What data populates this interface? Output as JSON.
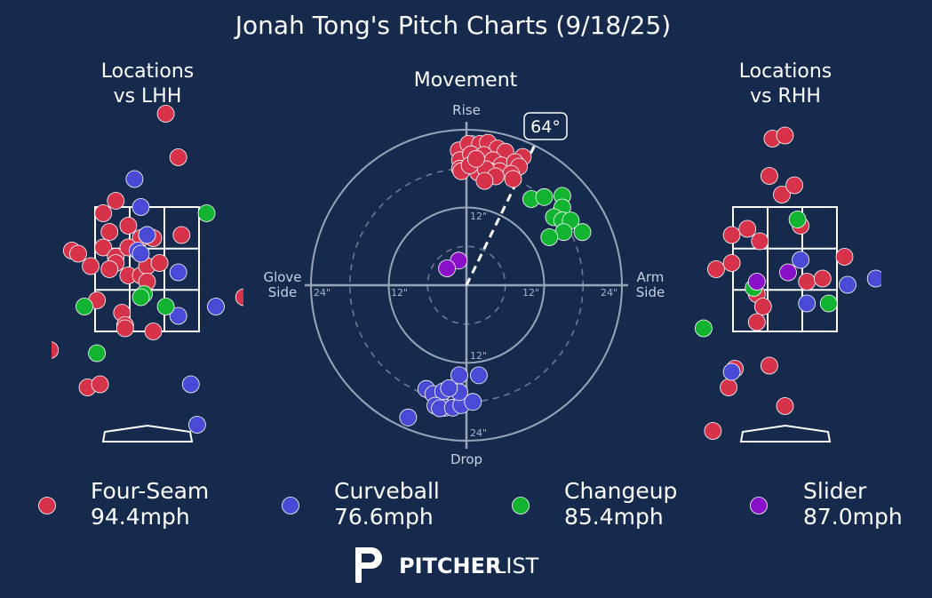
{
  "title": "Jonah Tong's Pitch Charts (9/18/25)",
  "colors": {
    "background": "#162a4d",
    "four_seam": "#d6334a",
    "curveball": "#4a4ad6",
    "changeup": "#11b331",
    "slider": "#8a0fc9"
  },
  "panels": {
    "lhh_title_line1": "Locations",
    "lhh_title_line2": "vs LHH",
    "movement_title": "Movement",
    "rhh_title_line1": "Locations",
    "rhh_title_line2": "vs RHH"
  },
  "movement": {
    "top_label": "Rise",
    "bottom_label": "Drop",
    "left_label_line1": "Glove",
    "left_label_line2": "Side",
    "right_label_line1": "Arm",
    "right_label_line2": "Side",
    "ring_labels": [
      "12\"",
      "24\""
    ],
    "arm_angle_label": "64°",
    "arm_angle_deg": 64
  },
  "legend": [
    {
      "name": "Four-Seam",
      "velo": "94.4mph",
      "color_key": "four_seam"
    },
    {
      "name": "Curveball",
      "velo": "76.6mph",
      "color_key": "curveball"
    },
    {
      "name": "Changeup",
      "velo": "85.4mph",
      "color_key": "changeup"
    },
    {
      "name": "Slider",
      "velo": "87.0mph",
      "color_key": "slider"
    }
  ],
  "brand": {
    "bold": "PITCHER",
    "light": "LIST"
  },
  "chart_data": [
    {
      "type": "scatter",
      "title": "Locations vs LHH",
      "x_range": [
        -1.9,
        1.9
      ],
      "y_range": [
        0.0,
        5.0
      ],
      "strike_zone": {
        "x": [
          -0.83,
          0.83
        ],
        "y": [
          1.5,
          3.5
        ]
      },
      "series": [
        {
          "name": "Four-Seam",
          "points": [
            [
              0.3,
              5.0
            ],
            [
              0.5,
              4.3
            ],
            [
              -0.5,
              3.6
            ],
            [
              -0.7,
              3.4
            ],
            [
              -0.6,
              3.1
            ],
            [
              -0.3,
              3.2
            ],
            [
              -0.1,
              3.0
            ],
            [
              0.0,
              3.05
            ],
            [
              0.1,
              3.0
            ],
            [
              0.55,
              3.05
            ],
            [
              -1.2,
              2.8
            ],
            [
              -1.1,
              2.75
            ],
            [
              -0.7,
              2.85
            ],
            [
              -0.5,
              2.7
            ],
            [
              -0.3,
              2.85
            ],
            [
              -0.5,
              2.6
            ],
            [
              -0.9,
              2.55
            ],
            [
              -0.6,
              2.5
            ],
            [
              -0.3,
              2.4
            ],
            [
              -0.1,
              2.4
            ],
            [
              0.0,
              2.55
            ],
            [
              0.2,
              2.6
            ],
            [
              0.0,
              2.3
            ],
            [
              -0.8,
              2.0
            ],
            [
              -0.4,
              1.8
            ],
            [
              -0.35,
              1.6
            ],
            [
              -0.35,
              1.55
            ],
            [
              0.1,
              1.5
            ],
            [
              -1.55,
              1.2
            ],
            [
              -0.95,
              0.6
            ],
            [
              -0.75,
              0.65
            ],
            [
              1.55,
              2.05
            ]
          ]
        },
        {
          "name": "Curveball",
          "points": [
            [
              -0.2,
              3.95
            ],
            [
              -0.1,
              3.5
            ],
            [
              -0.15,
              2.8
            ],
            [
              0.5,
              2.45
            ],
            [
              1.1,
              1.9
            ],
            [
              0.5,
              1.75
            ],
            [
              0.7,
              0.65
            ],
            [
              0.8,
              0.0
            ],
            [
              0.0,
              3.05
            ],
            [
              -0.1,
              2.75
            ]
          ]
        },
        {
          "name": "Changeup",
          "points": [
            [
              0.95,
              3.4
            ],
            [
              -1.0,
              1.9
            ],
            [
              0.3,
              1.9
            ],
            [
              -0.8,
              1.15
            ],
            [
              -0.05,
              2.1
            ],
            [
              -0.1,
              2.05
            ]
          ]
        },
        {
          "name": "Slider",
          "points": []
        }
      ]
    },
    {
      "type": "scatter",
      "title": "Movement",
      "x_unit": "inches horizontal break (glove side negative, arm side positive)",
      "y_unit": "inches induced vertical break",
      "rings": [
        12,
        24
      ],
      "series": [
        {
          "name": "Four-Seam",
          "points": [
            [
              -1.2,
              20.8
            ],
            [
              0.3,
              21.8
            ],
            [
              2.1,
              21.8
            ],
            [
              3.3,
              22.0
            ],
            [
              4.8,
              21.1
            ],
            [
              6.0,
              20.6
            ],
            [
              8.7,
              19.8
            ],
            [
              -1.0,
              19.3
            ],
            [
              0.7,
              20.2
            ],
            [
              2.7,
              20.1
            ],
            [
              4.1,
              19.3
            ],
            [
              5.4,
              18.5
            ],
            [
              7.5,
              19.0
            ],
            [
              8.1,
              18.3
            ],
            [
              -1.0,
              18.0
            ],
            [
              1.8,
              17.4
            ],
            [
              3.6,
              17.6
            ],
            [
              5.1,
              17.6
            ],
            [
              6.9,
              17.2
            ],
            [
              -0.8,
              17.6
            ],
            [
              3.0,
              17.9
            ],
            [
              4.5,
              16.8
            ],
            [
              2.8,
              16.1
            ],
            [
              7.2,
              16.4
            ],
            [
              0.5,
              18.5
            ],
            [
              1.5,
              19.5
            ]
          ]
        },
        {
          "name": "Curveball",
          "points": [
            [
              -9.0,
              -20.4
            ],
            [
              -6.2,
              -16.0
            ],
            [
              -5.1,
              -16.8
            ],
            [
              -3.6,
              -16.4
            ],
            [
              -4.8,
              -18.6
            ],
            [
              -3.3,
              -18.9
            ],
            [
              -4.1,
              -19.0
            ],
            [
              -2.1,
              -18.9
            ],
            [
              -0.8,
              -18.5
            ],
            [
              -1.1,
              -16.5
            ],
            [
              1.9,
              -13.9
            ],
            [
              -1.1,
              -13.9
            ],
            [
              -2.7,
              -15.9
            ],
            [
              1.0,
              -18.0
            ]
          ]
        },
        {
          "name": "Changeup",
          "points": [
            [
              10.0,
              13.3
            ],
            [
              12.0,
              13.6
            ],
            [
              14.8,
              13.8
            ],
            [
              14.8,
              12.0
            ],
            [
              13.5,
              10.5
            ],
            [
              14.8,
              10.0
            ],
            [
              16.1,
              10.0
            ],
            [
              15.0,
              8.2
            ],
            [
              17.9,
              8.2
            ],
            [
              12.8,
              7.4
            ]
          ]
        },
        {
          "name": "Slider",
          "points": [
            [
              -1.2,
              3.8
            ],
            [
              -3.0,
              2.6
            ]
          ]
        }
      ]
    },
    {
      "type": "scatter",
      "title": "Locations vs RHH",
      "x_range": [
        -1.9,
        1.9
      ],
      "y_range": [
        0.0,
        5.0
      ],
      "strike_zone": {
        "x": [
          -0.83,
          0.83
        ],
        "y": [
          1.5,
          3.5
        ]
      },
      "series": [
        {
          "name": "Four-Seam",
          "points": [
            [
              -0.2,
              4.6
            ],
            [
              0.0,
              4.65
            ],
            [
              -0.25,
              4.0
            ],
            [
              -0.05,
              3.7
            ],
            [
              0.15,
              3.85
            ],
            [
              0.25,
              3.2
            ],
            [
              -0.6,
              3.15
            ],
            [
              -0.85,
              3.05
            ],
            [
              -0.4,
              2.95
            ],
            [
              0.95,
              2.7
            ],
            [
              -1.1,
              2.5
            ],
            [
              -0.85,
              2.6
            ],
            [
              0.35,
              2.3
            ],
            [
              0.6,
              2.35
            ],
            [
              -0.45,
              2.1
            ],
            [
              -0.35,
              1.9
            ],
            [
              -0.45,
              1.65
            ],
            [
              -0.8,
              0.9
            ],
            [
              -0.9,
              0.6
            ],
            [
              -0.25,
              0.95
            ],
            [
              0.0,
              0.3
            ],
            [
              -1.15,
              -0.1
            ]
          ]
        },
        {
          "name": "Curveball",
          "points": [
            [
              0.25,
              2.65
            ],
            [
              0.35,
              1.95
            ],
            [
              1.0,
              2.25
            ],
            [
              1.45,
              2.35
            ],
            [
              -0.85,
              0.85
            ]
          ]
        },
        {
          "name": "Changeup",
          "points": [
            [
              0.2,
              3.3
            ],
            [
              0.7,
              1.95
            ],
            [
              -1.3,
              1.55
            ],
            [
              -0.5,
              2.2
            ]
          ]
        },
        {
          "name": "Slider",
          "points": [
            [
              -0.45,
              2.3
            ],
            [
              0.05,
              2.45
            ]
          ]
        }
      ]
    }
  ]
}
